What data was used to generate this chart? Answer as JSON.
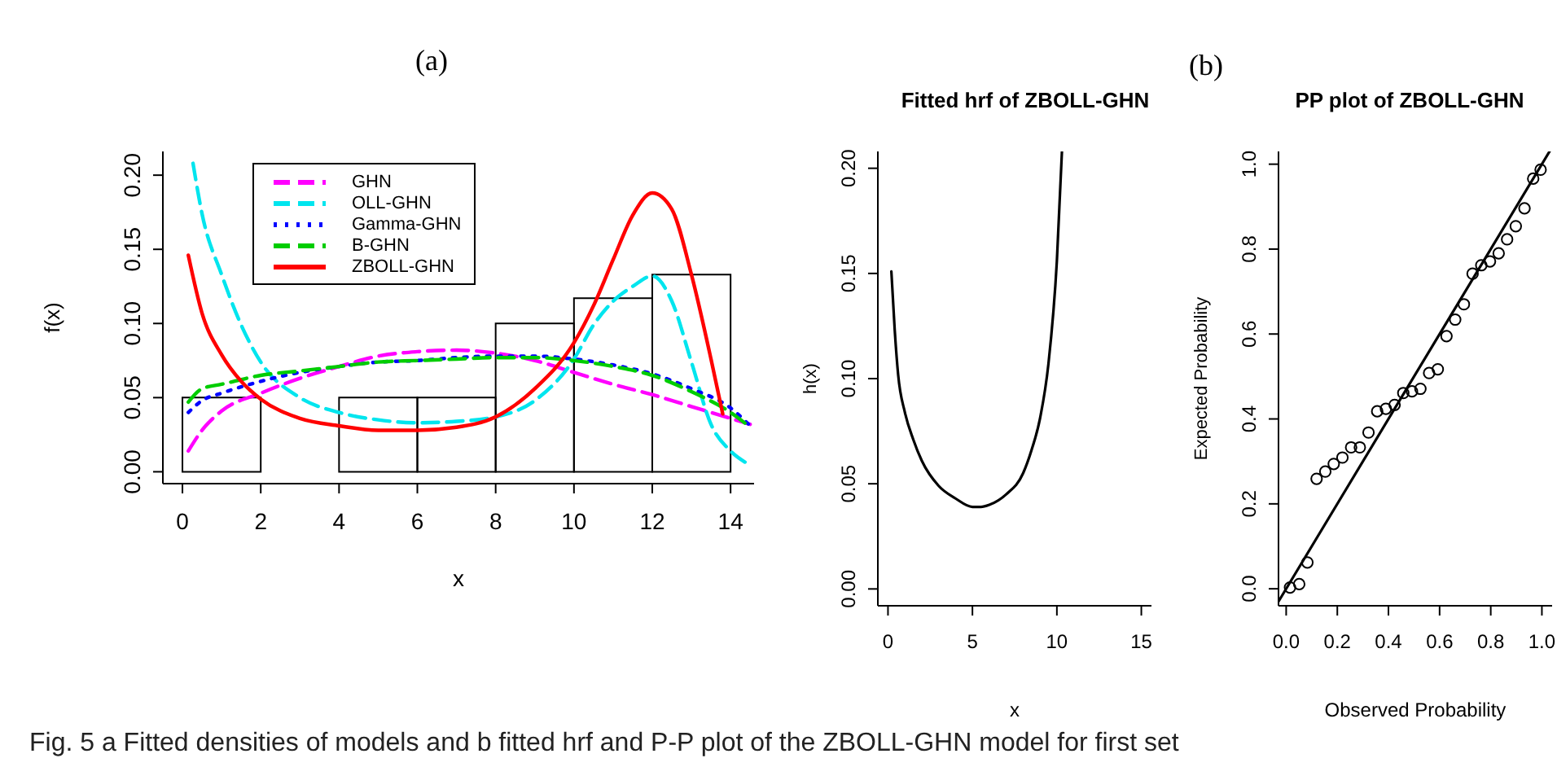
{
  "chart_data": [
    {
      "type": "histogram",
      "title": "(a)",
      "xlabel": "x",
      "ylabel": "f(x)",
      "annotations": [
        "Fig. 5 a Fitted densities of models and b fitted hrf and P-P plot of the ZBOLL-GHN model for first set"
      ],
      "bins": [
        0,
        2,
        4,
        6,
        8,
        10,
        12,
        14
      ],
      "values": [
        0.05,
        0,
        0.05,
        0.05,
        0.1,
        0.117,
        0.133
      ],
      "xlim": [
        -0.5,
        14.6
      ],
      "ylim": [
        -0.008,
        0.216
      ],
      "xticks": [
        0,
        2,
        4,
        6,
        8,
        10,
        12,
        14
      ],
      "yticks": [
        {
          "value": 0,
          "label": "0.00"
        },
        {
          "value": 0.05,
          "label": "0.05"
        },
        {
          "value": 0.1,
          "label": "0.10"
        },
        {
          "value": 0.15,
          "label": "0.15"
        },
        {
          "value": 0.2,
          "label": "0.20"
        }
      ],
      "legend": "top left",
      "series": [
        {
          "type": "line",
          "name": "GHN",
          "color": "#ff00ff",
          "line_style": "dashed",
          "x": [
            0.15,
            0.5,
            1,
            2,
            3,
            4,
            5,
            6,
            7,
            8,
            9,
            10,
            11,
            12,
            13,
            14,
            14.5
          ],
          "values": [
            0.014,
            0.028,
            0.041,
            0.053,
            0.063,
            0.071,
            0.078,
            0.081,
            0.082,
            0.08,
            0.075,
            0.067,
            0.059,
            0.052,
            0.044,
            0.036,
            0.032
          ]
        },
        {
          "type": "line",
          "name": "OLL-GHN",
          "color": "#00e5ee",
          "line_style": "dashed",
          "x": [
            0.27,
            0.5,
            1,
            1.5,
            2,
            3,
            4,
            5,
            6,
            7,
            8,
            9,
            10,
            10.5,
            11,
            11.5,
            12,
            12.5,
            13,
            13.5,
            14,
            14.4
          ],
          "values": [
            0.208,
            0.174,
            0.133,
            0.099,
            0.074,
            0.05,
            0.04,
            0.035,
            0.033,
            0.034,
            0.037,
            0.048,
            0.076,
            0.099,
            0.115,
            0.125,
            0.132,
            0.115,
            0.074,
            0.032,
            0.014,
            0.006
          ]
        },
        {
          "type": "line",
          "name": "Gamma-GHN",
          "color": "#0000ff",
          "line_style": "dotted",
          "x": [
            0.15,
            0.5,
            1,
            2,
            3,
            4,
            5,
            6,
            7,
            8,
            9,
            10,
            11,
            12,
            13,
            14,
            14.5
          ],
          "values": [
            0.04,
            0.048,
            0.053,
            0.061,
            0.067,
            0.071,
            0.074,
            0.075,
            0.077,
            0.078,
            0.078,
            0.076,
            0.072,
            0.066,
            0.056,
            0.043,
            0.031
          ]
        },
        {
          "type": "line",
          "name": "B-GHN",
          "color": "#00cd00",
          "line_style": "dashed",
          "x": [
            0.15,
            0.5,
            1,
            2,
            3,
            4,
            5,
            6,
            7,
            8,
            9,
            10,
            11,
            12,
            13,
            14,
            14.5
          ],
          "values": [
            0.047,
            0.056,
            0.059,
            0.065,
            0.068,
            0.071,
            0.074,
            0.075,
            0.076,
            0.077,
            0.077,
            0.075,
            0.071,
            0.065,
            0.054,
            0.04,
            0.03
          ]
        },
        {
          "type": "line",
          "name": "ZBOLL-GHN",
          "color": "#ff0000",
          "line_style": "solid",
          "x": [
            0.15,
            0.5,
            1,
            1.5,
            2,
            3,
            4,
            5,
            6,
            7,
            8,
            9,
            10,
            10.5,
            11,
            11.5,
            12,
            12.5,
            13,
            13.5,
            13.8
          ],
          "values": [
            0.146,
            0.107,
            0.079,
            0.061,
            0.049,
            0.036,
            0.031,
            0.028,
            0.028,
            0.03,
            0.037,
            0.056,
            0.087,
            0.112,
            0.143,
            0.173,
            0.188,
            0.177,
            0.133,
            0.076,
            0.039
          ]
        }
      ]
    },
    {
      "type": "line",
      "title": "Fitted hrf of ZBOLL-GHN",
      "xlabel": "x",
      "ylabel": "h(x)",
      "x": [
        0.2,
        0.4,
        0.6,
        1,
        1.5,
        2,
        3,
        4,
        5,
        5.5,
        6,
        7,
        8,
        8.5,
        9,
        9.5,
        10,
        10.3
      ],
      "values": [
        0.151,
        0.123,
        0.102,
        0.084,
        0.071,
        0.061,
        0.049,
        0.043,
        0.039,
        0.039,
        0.04,
        0.045,
        0.055,
        0.066,
        0.081,
        0.107,
        0.156,
        0.208
      ],
      "color": "#000000",
      "xlim": [
        -0.6,
        15.6
      ],
      "ylim": [
        -0.008,
        0.208
      ],
      "xticks": [
        0,
        5,
        10,
        15
      ],
      "yticks": [
        {
          "value": 0,
          "label": "0.00"
        },
        {
          "value": 0.05,
          "label": "0.05"
        },
        {
          "value": 0.1,
          "label": "0.10"
        },
        {
          "value": 0.15,
          "label": "0.15"
        },
        {
          "value": 0.2,
          "label": "0.20"
        }
      ]
    },
    {
      "type": "scatter",
      "title": "PP plot of ZBOLL-GHN",
      "xlabel": "Observed Probability",
      "ylabel": "Expected Probability",
      "annotations": [
        "(b)"
      ],
      "xlim": [
        -0.03,
        1.04
      ],
      "ylim": [
        -0.04,
        1.03
      ],
      "xticks": [
        {
          "value": 0,
          "label": "0.0"
        },
        0.2,
        0.4,
        0.6,
        0.8,
        {
          "value": 1,
          "label": "1.0"
        }
      ],
      "yticks": [
        {
          "value": 0,
          "label": "0.0"
        },
        0.2,
        0.4,
        0.6,
        0.8,
        {
          "value": 1,
          "label": "1.0"
        }
      ],
      "series": [
        {
          "type": "scatter",
          "marker": "circle",
          "color": "#000000",
          "x": [
            0.015,
            0.051,
            0.083,
            0.119,
            0.153,
            0.186,
            0.22,
            0.254,
            0.288,
            0.322,
            0.356,
            0.39,
            0.424,
            0.458,
            0.492,
            0.525,
            0.559,
            0.593,
            0.627,
            0.661,
            0.695,
            0.729,
            0.763,
            0.797,
            0.831,
            0.864,
            0.898,
            0.932,
            0.966,
            0.995
          ],
          "values": [
            0.003,
            0.011,
            0.062,
            0.259,
            0.276,
            0.294,
            0.309,
            0.333,
            0.333,
            0.368,
            0.418,
            0.424,
            0.433,
            0.461,
            0.465,
            0.471,
            0.508,
            0.517,
            0.595,
            0.634,
            0.67,
            0.742,
            0.762,
            0.771,
            0.79,
            0.823,
            0.854,
            0.896,
            0.966,
            0.987
          ]
        },
        {
          "type": "line",
          "color": "#000000",
          "x": [
            -0.03,
            1.03
          ],
          "values": [
            -0.03,
            1.03
          ]
        }
      ]
    }
  ]
}
